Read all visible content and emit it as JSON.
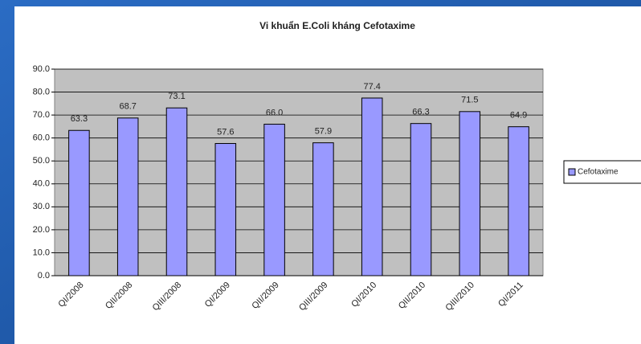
{
  "chart_data": {
    "type": "bar",
    "title": "Vi khuẩn E.Coli kháng Cefotaxime",
    "categories": [
      "QI/2008",
      "QII/2008",
      "QIII/2008",
      "QI/2009",
      "QII/2009",
      "QIII/2009",
      "QI/2010",
      "QII/2010",
      "QIII/2010",
      "QI/2011"
    ],
    "series": [
      {
        "name": "Cefotaxime",
        "color": "#9999ff",
        "values": [
          63.3,
          68.7,
          73.1,
          57.6,
          66.0,
          57.9,
          77.4,
          66.3,
          71.5,
          64.9
        ],
        "value_labels": [
          "63.3",
          "68.7",
          "73.1",
          "57.6",
          "66.0",
          "57.9",
          "77.4",
          "66.3",
          "71.5",
          "64.9"
        ]
      }
    ],
    "ylim": [
      0,
      90
    ],
    "yticks": [
      {
        "value": 0,
        "label": "0.0"
      },
      {
        "value": 10,
        "label": "10.0"
      },
      {
        "value": 20,
        "label": "20.0"
      },
      {
        "value": 30,
        "label": "30.0"
      },
      {
        "value": 40,
        "label": "40.0"
      },
      {
        "value": 50,
        "label": "50.0"
      },
      {
        "value": 60,
        "label": "60.0"
      },
      {
        "value": 70,
        "label": "70.0"
      },
      {
        "value": 80,
        "label": "80.0"
      },
      {
        "value": 90,
        "label": "90.0"
      }
    ],
    "grid": true,
    "legend": "right"
  }
}
